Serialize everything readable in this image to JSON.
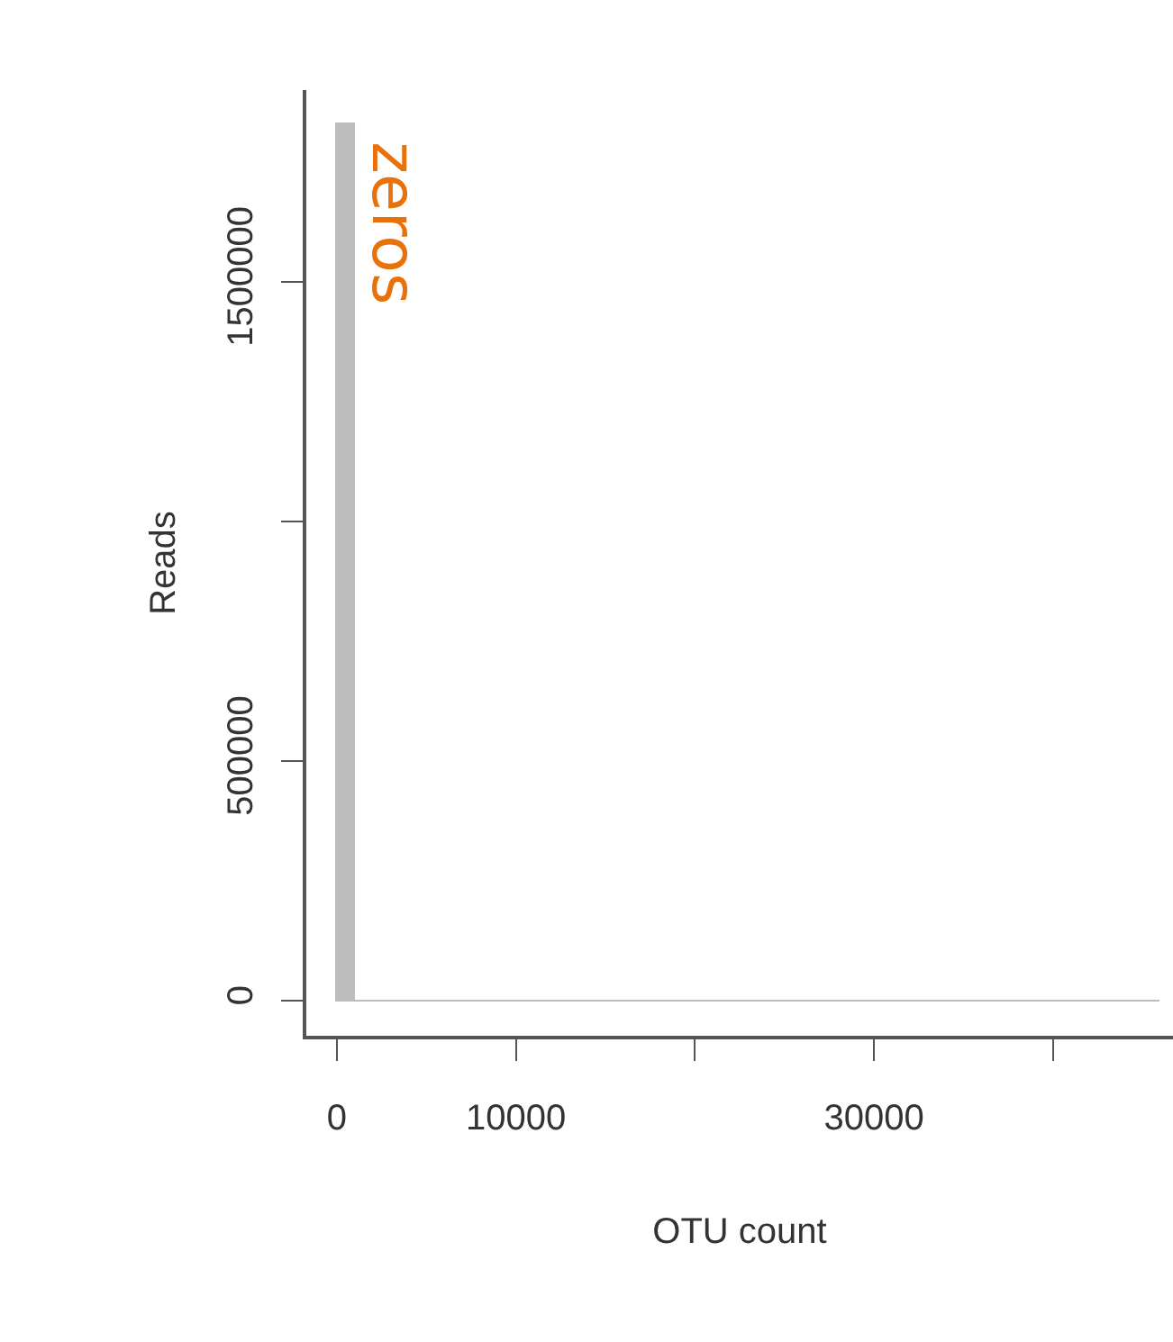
{
  "chart_data": {
    "type": "histogram",
    "xlabel": "OTU count",
    "ylabel": "Reads",
    "bins": [
      0,
      1000,
      2000,
      3000,
      4000,
      5000,
      6000,
      7000,
      8000,
      9000,
      10000,
      11000,
      12000,
      13000,
      14000,
      15000,
      16000,
      17000,
      18000,
      19000,
      20000,
      21000,
      22000,
      23000,
      24000,
      25000,
      26000,
      27000,
      28000,
      29000,
      30000,
      31000,
      32000,
      33000,
      34000,
      35000,
      36000,
      37000,
      38000,
      39000,
      40000,
      41000,
      42000,
      43000,
      44000,
      45000,
      46000
    ],
    "values": [
      1827000,
      0,
      0,
      0,
      0,
      0,
      0,
      0,
      0,
      0,
      0,
      0,
      0,
      0,
      0,
      0,
      0,
      0,
      0,
      0,
      0,
      0,
      0,
      0,
      0,
      0,
      0,
      0,
      0,
      0,
      0,
      0,
      0,
      0,
      0,
      0,
      0,
      0,
      0,
      0,
      0,
      0,
      0,
      0,
      0,
      0
    ],
    "color": "#bdbdbd",
    "xlim": [
      -1700,
      46700
    ],
    "ylim": [
      -73000,
      1900000
    ],
    "xticks": [
      0,
      10000,
      {
        "value": 20000,
        "label": null
      },
      30000,
      {
        "value": 40000,
        "label": null
      }
    ],
    "yticks": [
      0,
      500000,
      {
        "value": 1000000,
        "label": null
      },
      1500000
    ],
    "annotations": [
      "zeros"
    ]
  }
}
